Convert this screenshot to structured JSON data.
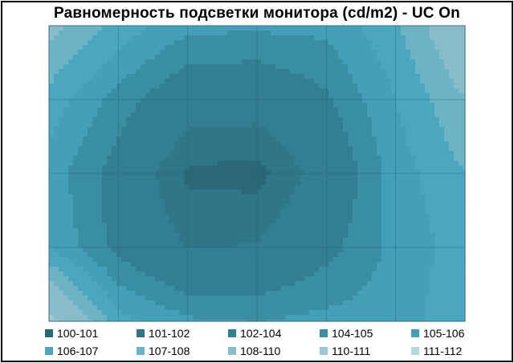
{
  "chart_data": {
    "type": "heatmap",
    "subtype": "contour",
    "title": "Равномерность  подсветки монитора (cd/m2) - UC On",
    "xlabel": "",
    "ylabel": "",
    "grid": true,
    "legend_position": "bottom",
    "grid_columns": 7,
    "grid_rows": 5,
    "values": [
      [
        108.5,
        106.6,
        105.3,
        105.2,
        105.3,
        106.8,
        109.5
      ],
      [
        106.6,
        104.6,
        102.8,
        102.7,
        103.8,
        106.0,
        108.0
      ],
      [
        105.6,
        103.4,
        100.8,
        100.6,
        102.7,
        105.5,
        107.0
      ],
      [
        106.0,
        103.6,
        101.9,
        102.1,
        103.6,
        105.3,
        106.5
      ],
      [
        110.5,
        106.4,
        105.2,
        105.0,
        105.3,
        105.5,
        106.8
      ]
    ],
    "legend": [
      {
        "label": "100-101",
        "min": 100,
        "max": 101,
        "color": "#2a6878"
      },
      {
        "label": "101-102",
        "min": 101,
        "max": 102,
        "color": "#2f7689"
      },
      {
        "label": "102-104",
        "min": 102,
        "max": 104,
        "color": "#337f92"
      },
      {
        "label": "104-105",
        "min": 104,
        "max": 105,
        "color": "#3a8ea2"
      },
      {
        "label": "105-106",
        "min": 105,
        "max": 106,
        "color": "#44a0b8"
      },
      {
        "label": "106-107",
        "min": 106,
        "max": 107,
        "color": "#4aa7bf"
      },
      {
        "label": "107-108",
        "min": 107,
        "max": 108,
        "color": "#6cb3c6"
      },
      {
        "label": "108-110",
        "min": 108,
        "max": 110,
        "color": "#89bcc9"
      },
      {
        "label": "110-111",
        "min": 110,
        "max": 111,
        "color": "#9cc8d3"
      },
      {
        "label": "111-112",
        "min": 111,
        "max": 112,
        "color": "#b4d8e0"
      }
    ]
  }
}
